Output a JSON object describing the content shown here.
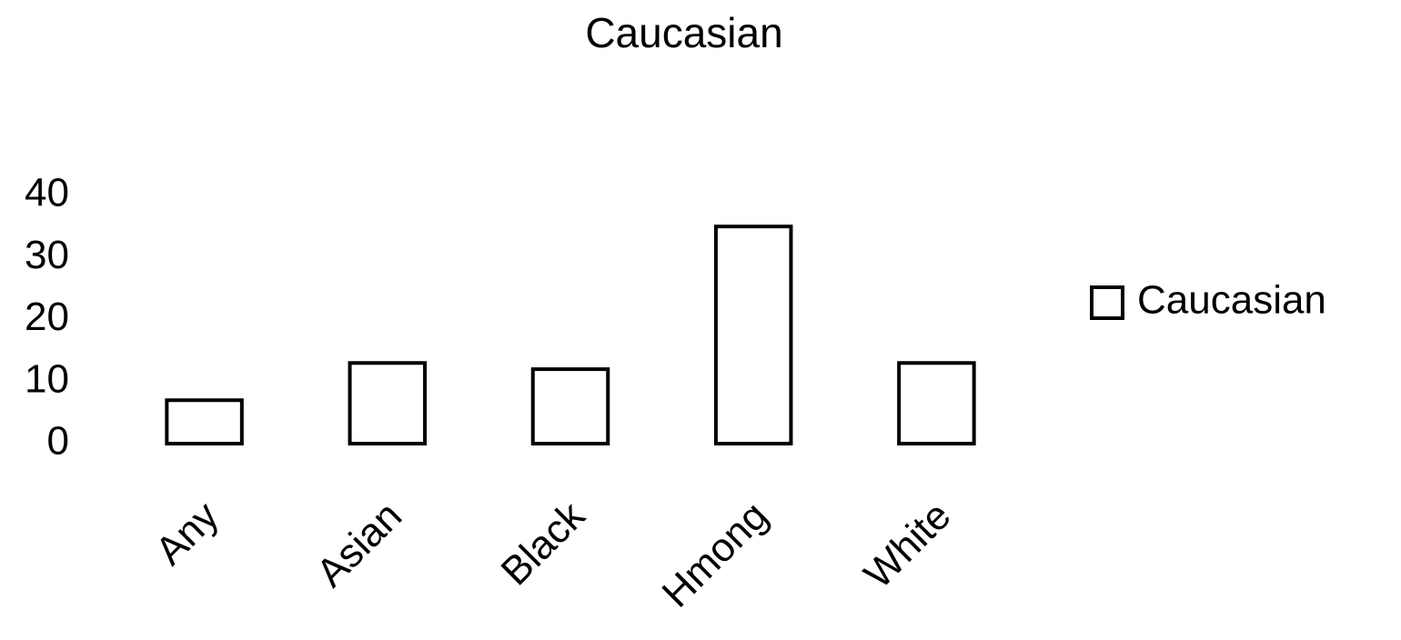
{
  "chart_data": {
    "type": "bar",
    "title": "Caucasian",
    "categories": [
      "Any",
      "Asian",
      "Black",
      "Hmong",
      "White"
    ],
    "series": [
      {
        "name": "Caucasian",
        "color": "#ffffff",
        "values": [
          7,
          13,
          12,
          35,
          13
        ]
      }
    ],
    "ylim": [
      0,
      40
    ],
    "yticks": [
      0,
      10,
      20,
      30,
      40
    ],
    "grid": false,
    "legend": "right"
  }
}
